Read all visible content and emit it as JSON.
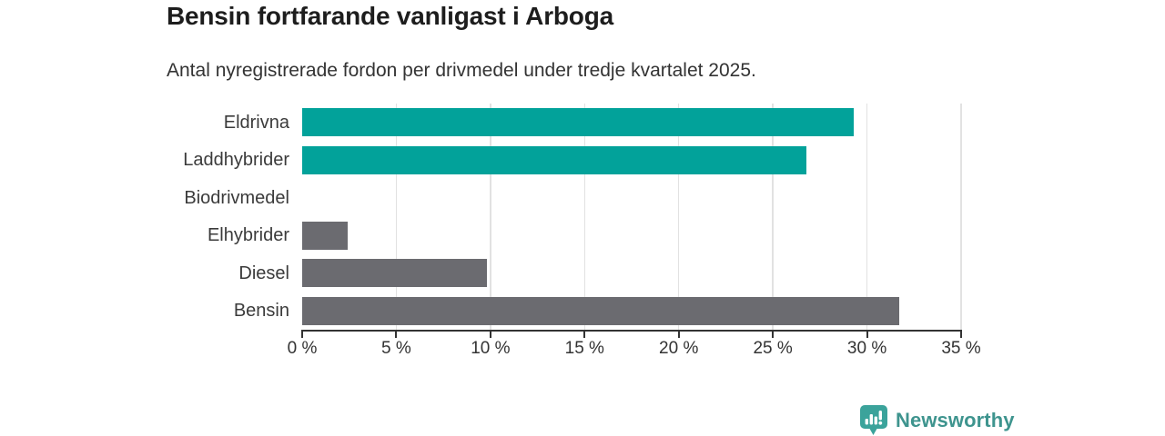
{
  "header": {
    "title": "Bensin fortfarande vanligast i Arboga",
    "subtitle": "Antal nyregistrerade fordon per drivmedel under tredje kvartalet 2025."
  },
  "chart_data": {
    "type": "bar",
    "orientation": "horizontal",
    "title": "Bensin fortfarande vanligast i Arboga",
    "subtitle": "Antal nyregistrerade fordon per drivmedel under tredje kvartalet 2025.",
    "categories": [
      "Eldrivna",
      "Laddhybrider",
      "Biodrivmedel",
      "Elhybrider",
      "Diesel",
      "Bensin"
    ],
    "values": [
      29.3,
      26.8,
      0,
      2.4,
      9.8,
      31.7
    ],
    "unit": "%",
    "bar_colors": [
      "#02a29a",
      "#02a29a",
      "#6b6b70",
      "#6b6b70",
      "#6b6b70",
      "#6b6b70"
    ],
    "xlabel": "",
    "ylabel": "",
    "xlim": [
      0,
      35
    ],
    "x_ticks": [
      0,
      5,
      10,
      15,
      20,
      25,
      30,
      35
    ],
    "x_tick_labels": [
      "0 %",
      "5 %",
      "10 %",
      "15 %",
      "20 %",
      "25 %",
      "30 %",
      "35 %"
    ],
    "grid": "vertical-only",
    "legend": "none"
  },
  "branding": {
    "logo_text": "Newsworthy",
    "logo_icon": "bar-chart-speech-bubble-icon",
    "icon_color": "#3ba39b",
    "text_color": "#3e948e"
  },
  "colors": {
    "highlight_teal": "#02a29a",
    "neutral_gray": "#6b6b70",
    "gridline": "#e2e2e2",
    "axis": "#333333",
    "title_text": "#1d1d1d",
    "body_text": "#3b3b3b",
    "background": "#ffffff"
  }
}
